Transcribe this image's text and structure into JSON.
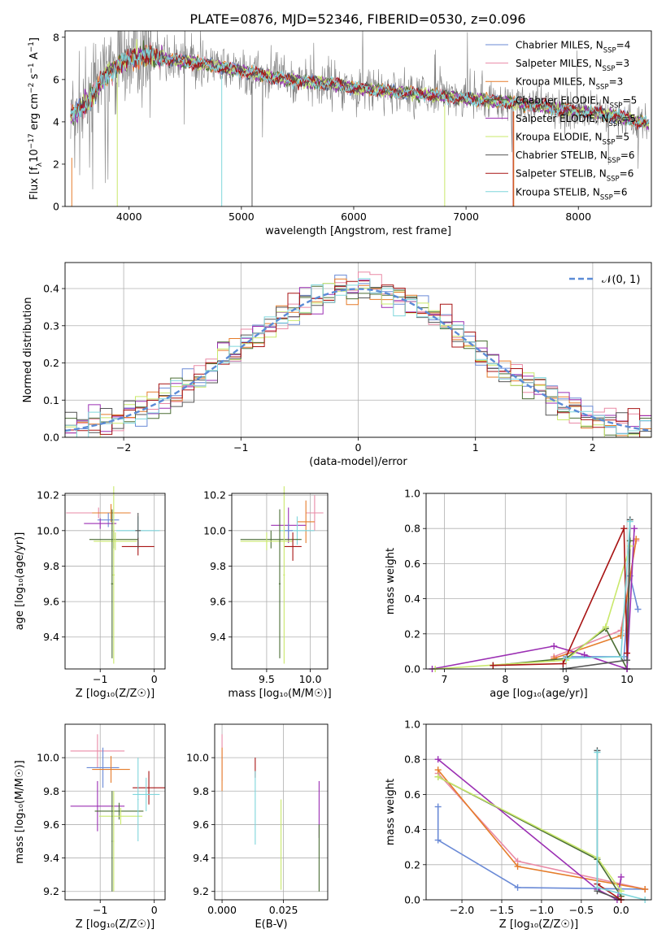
{
  "figure": {
    "title": "PLATE=0876, MJD=52346, FIBERID=0530, z=0.096"
  },
  "colors": {
    "Chabrier MILES": "#6a8ad6",
    "Salpeter MILES": "#e98aa6",
    "Kroupa MILES": "#e57c2a",
    "Chabrier ELODIE": "#4b6e35",
    "Salpeter ELODIE": "#9b2fb3",
    "Kroupa ELODIE": "#c9e86b",
    "Chabrier STELIB": "#555555",
    "Salpeter STELIB": "#a81414",
    "Kroupa STELIB": "#7fd6dc",
    "data": "#808080",
    "gaussian": "#5b8bd6"
  },
  "chart_data": [
    {
      "id": "spectrum",
      "type": "line",
      "xlabel": "wavelength [Angstrom, rest frame]",
      "ylabel_parts": [
        "Flux [f",
        "λ",
        "10",
        "−17",
        " erg cm",
        "−2",
        " s",
        "−1",
        " A",
        "−1",
        "]"
      ],
      "xlim": [
        3430,
        8650
      ],
      "ylim": [
        0,
        8.3
      ],
      "xticks": [
        4000,
        5000,
        6000,
        7000,
        8000
      ],
      "yticks": [
        0,
        2,
        4,
        6,
        8
      ],
      "grid": false,
      "legend_position": "top-right",
      "continuum": [
        [
          3480,
          4.3
        ],
        [
          3600,
          4.8
        ],
        [
          3700,
          5.4
        ],
        [
          3800,
          6.2
        ],
        [
          3900,
          6.7
        ],
        [
          4000,
          7.0
        ],
        [
          4100,
          7.1
        ],
        [
          4200,
          7.1
        ],
        [
          4400,
          6.9
        ],
        [
          4600,
          6.8
        ],
        [
          4800,
          6.6
        ],
        [
          5000,
          6.4
        ],
        [
          5200,
          6.2
        ],
        [
          5400,
          6.0
        ],
        [
          5600,
          5.9
        ],
        [
          5800,
          5.8
        ],
        [
          6000,
          5.6
        ],
        [
          6200,
          5.5
        ],
        [
          6400,
          5.4
        ],
        [
          6600,
          5.3
        ],
        [
          6800,
          5.2
        ],
        [
          7000,
          5.1
        ],
        [
          7200,
          5.0
        ],
        [
          7400,
          4.9
        ],
        [
          7600,
          4.8
        ],
        [
          7800,
          4.6
        ],
        [
          8000,
          4.5
        ],
        [
          8200,
          4.4
        ],
        [
          8400,
          4.2
        ],
        [
          8630,
          3.9
        ]
      ],
      "series": [
        {
          "name_parts": [
            "Chabrier MILES, N",
            "SSP",
            "=4"
          ],
          "key": "Chabrier MILES"
        },
        {
          "name_parts": [
            "Salpeter MILES, N",
            "SSP",
            "=3"
          ],
          "key": "Salpeter MILES"
        },
        {
          "name_parts": [
            "Kroupa MILES, N",
            "SSP",
            "=3"
          ],
          "key": "Kroupa MILES"
        },
        {
          "name_parts": [
            "Chabrier ELODIE, N",
            "SSP",
            "=5"
          ],
          "key": "Chabrier ELODIE"
        },
        {
          "name_parts": [
            "Salpeter ELODIE, N",
            "SSP",
            "=5"
          ],
          "key": "Salpeter ELODIE"
        },
        {
          "name_parts": [
            "Kroupa ELODIE, N",
            "SSP",
            "=5"
          ],
          "key": "Kroupa ELODIE"
        },
        {
          "name_parts": [
            "Chabrier STELIB, N",
            "SSP",
            "=6"
          ],
          "key": "Chabrier STELIB"
        },
        {
          "name_parts": [
            "Salpeter STELIB, N",
            "SSP",
            "=6"
          ],
          "key": "Salpeter STELIB"
        },
        {
          "name_parts": [
            "Kroupa STELIB, N",
            "SSP",
            "=6"
          ],
          "key": "Kroupa STELIB"
        }
      ],
      "dropouts": [
        {
          "key": "Kroupa ELODIE",
          "x": 3895
        },
        {
          "key": "Kroupa STELIB",
          "x": 4825
        },
        {
          "key": "Chabrier STELIB",
          "x": 5095
        },
        {
          "key": "Kroupa ELODIE",
          "x": 6810
        },
        {
          "key": "Salpeter STELIB",
          "x": 7420
        },
        {
          "key": "Kroupa MILES",
          "x": 7425
        }
      ]
    },
    {
      "id": "residuals",
      "type": "histogram",
      "xlabel": "(data-model)/error",
      "ylabel": "Normed distribution",
      "xlim": [
        -2.5,
        2.5
      ],
      "ylim": [
        0,
        0.47
      ],
      "xticks": [
        -2,
        -1,
        0,
        1,
        2
      ],
      "xticklabels": [
        "−2",
        "−1",
        "0",
        "1",
        "2"
      ],
      "yticks": [
        0.0,
        0.1,
        0.2,
        0.3,
        0.4
      ],
      "yticklabels": [
        "0.0",
        "0.1",
        "0.2",
        "0.3",
        "0.4"
      ],
      "grid": true,
      "legend_position": "top-right",
      "legend_label": "𝒩(0, 1)",
      "bin_width": 0.1,
      "series_keys": [
        "Chabrier MILES",
        "Salpeter MILES",
        "Kroupa MILES",
        "Chabrier ELODIE",
        "Salpeter ELODIE",
        "Kroupa ELODIE",
        "Chabrier STELIB",
        "Salpeter STELIB",
        "Kroupa STELIB"
      ]
    },
    {
      "id": "age-vs-Z",
      "type": "scatter",
      "xlabel": "Z [log₁₀(Z/Z☉)]",
      "ylabel": "age  [log₁₀(age/yr)]",
      "xlim": [
        -1.65,
        0.2
      ],
      "ylim": [
        9.22,
        10.21
      ],
      "xticks": [
        -1,
        0
      ],
      "xticklabels": [
        "−1",
        "0"
      ],
      "yticks": [
        9.4,
        9.6,
        9.8,
        10.0,
        10.2
      ],
      "yticklabels": [
        "9.4",
        "9.6",
        "9.8",
        "10.0",
        "10.2"
      ],
      "grid": true,
      "points": [
        {
          "key": "Salpeter MILES",
          "x": -1.03,
          "xerr": 0.6,
          "y": 10.1,
          "yerr": 0.03
        },
        {
          "key": "Kroupa MILES",
          "x": -0.8,
          "xerr": 0.35,
          "y": 10.1,
          "yerr": 0.05
        },
        {
          "key": "Chabrier MILES",
          "x": -0.85,
          "xerr": 0.2,
          "y": 10.06,
          "yerr": 0.04
        },
        {
          "key": "Salpeter ELODIE",
          "x": -1.0,
          "xerr": 0.3,
          "y": 10.04,
          "yerr": 0.03
        },
        {
          "key": "Kroupa STELIB",
          "x": -0.3,
          "xerr": 0.4,
          "y": 10.0,
          "yerr": 0.08
        },
        {
          "key": "Chabrier ELODIE",
          "x": -0.75,
          "xerr": 0.45,
          "y": 9.95,
          "yerr": 0.05
        },
        {
          "key": "Kroupa ELODIE",
          "x": -0.72,
          "xerr": 0.4,
          "y": 9.94,
          "yerr": 0.05
        },
        {
          "key": "Salpeter STELIB",
          "x": -0.3,
          "xerr": 0.3,
          "y": 9.91,
          "yerr": 0.05
        },
        {
          "key": "Chabrier STELIB",
          "x": -0.3,
          "xerr": 0.05,
          "y": 10.0,
          "yerr": 0.1
        },
        {
          "key": "Chabrier ELODIE",
          "x": -0.78,
          "xerr": 0.02,
          "y": 9.7,
          "yerr": 0.42
        },
        {
          "key": "Kroupa ELODIE",
          "x": -0.75,
          "xerr": 0.02,
          "y": 9.75,
          "yerr": 0.5
        }
      ]
    },
    {
      "id": "age-vs-mass",
      "type": "scatter",
      "xlabel": "mass [log₁₀(M/M☉)]",
      "ylabel": "",
      "xlim": [
        9.1,
        10.2
      ],
      "ylim": [
        9.22,
        10.21
      ],
      "xticks": [
        9.5,
        10.0
      ],
      "xticklabels": [
        "9.5",
        "10.0"
      ],
      "yticks": [
        9.4,
        9.6,
        9.8,
        10.0,
        10.2
      ],
      "yticklabels": [
        "9.4",
        "9.6",
        "9.8",
        "10.0",
        "10.2"
      ],
      "grid": true,
      "points": [
        {
          "key": "Salpeter MILES",
          "x": 10.05,
          "xerr": 0.1,
          "y": 10.1,
          "yerr": 0.1
        },
        {
          "key": "Kroupa MILES",
          "x": 9.95,
          "xerr": 0.1,
          "y": 10.05,
          "yerr": 0.12
        },
        {
          "key": "Salpeter ELODIE",
          "x": 9.75,
          "xerr": 0.2,
          "y": 10.03,
          "yerr": 0.1
        },
        {
          "key": "Kroupa STELIB",
          "x": 9.85,
          "xerr": 0.2,
          "y": 10.0,
          "yerr": 0.08
        },
        {
          "key": "Chabrier MILES",
          "x": 9.75,
          "xerr": 0.05,
          "y": 10.0,
          "yerr": 0.04
        },
        {
          "key": "Chabrier ELODIE",
          "x": 9.55,
          "xerr": 0.35,
          "y": 9.95,
          "yerr": 0.05
        },
        {
          "key": "Kroupa ELODIE",
          "x": 9.5,
          "xerr": 0.3,
          "y": 9.94,
          "yerr": 0.05
        },
        {
          "key": "Salpeter STELIB",
          "x": 9.8,
          "xerr": 0.1,
          "y": 9.91,
          "yerr": 0.08
        },
        {
          "key": "Chabrier ELODIE",
          "x": 9.65,
          "xerr": 0.01,
          "y": 9.7,
          "yerr": 0.42
        },
        {
          "key": "Kroupa ELODIE",
          "x": 9.7,
          "xerr": 0.01,
          "y": 9.75,
          "yerr": 0.5
        }
      ]
    },
    {
      "id": "mass-weight-vs-age",
      "type": "line",
      "xlabel": "age  [log₁₀(age/yr)]",
      "ylabel": "mass weight",
      "xlim": [
        6.7,
        10.4
      ],
      "ylim": [
        0,
        1.0
      ],
      "xticks": [
        7,
        8,
        9,
        10
      ],
      "yticks": [
        0.0,
        0.2,
        0.4,
        0.6,
        0.8,
        1.0
      ],
      "yticklabels": [
        "0.0",
        "0.2",
        "0.4",
        "0.6",
        "0.8",
        "1.0"
      ],
      "grid": true,
      "series": [
        {
          "key": "Chabrier MILES",
          "x": [
            9.0,
            9.95,
            10.05,
            10.18
          ],
          "y": [
            0.07,
            0.07,
            0.53,
            0.34
          ]
        },
        {
          "key": "Salpeter MILES",
          "x": [
            8.8,
            9.9,
            10.15
          ],
          "y": [
            0.07,
            0.22,
            0.73
          ]
        },
        {
          "key": "Kroupa MILES",
          "x": [
            8.8,
            9.9,
            10.15
          ],
          "y": [
            0.06,
            0.19,
            0.74
          ]
        },
        {
          "key": "Chabrier ELODIE",
          "x": [
            7.8,
            9.0,
            9.65,
            10.0,
            10.05
          ],
          "y": [
            0.02,
            0.06,
            0.23,
            0.0,
            0.73
          ]
        },
        {
          "key": "Salpeter ELODIE",
          "x": [
            6.8,
            8.8,
            9.3,
            10.0,
            10.12
          ],
          "y": [
            0.0,
            0.13,
            0.08,
            0.0,
            0.8
          ]
        },
        {
          "key": "Kroupa ELODIE",
          "x": [
            6.85,
            9.0,
            9.65,
            10.05
          ],
          "y": [
            0.0,
            0.05,
            0.24,
            0.7
          ]
        },
        {
          "key": "Chabrier STELIB",
          "x": [
            8.95,
            10.0,
            10.05
          ],
          "y": [
            0.0,
            0.05,
            0.85
          ]
        },
        {
          "key": "Salpeter STELIB",
          "x": [
            7.8,
            8.95,
            9.95,
            10.0
          ],
          "y": [
            0.02,
            0.03,
            0.8,
            0.09
          ]
        },
        {
          "key": "Kroupa STELIB",
          "x": [
            9.0,
            9.9,
            10.05
          ],
          "y": [
            0.06,
            0.07,
            0.84
          ]
        }
      ]
    },
    {
      "id": "mass-vs-Z",
      "type": "scatter",
      "xlabel": "Z [log₁₀(Z/Z☉)]",
      "ylabel": "mass [log₁₀(M/M☉)]",
      "xlim": [
        -1.65,
        0.2
      ],
      "ylim": [
        9.15,
        10.2
      ],
      "xticks": [
        -1,
        0
      ],
      "xticklabels": [
        "−1",
        "0"
      ],
      "yticks": [
        9.2,
        9.4,
        9.6,
        9.8,
        10.0
      ],
      "yticklabels": [
        "9.2",
        "9.4",
        "9.6",
        "9.8",
        "10.0"
      ],
      "grid": true,
      "points": [
        {
          "key": "Salpeter MILES",
          "x": -1.05,
          "xerr": 0.5,
          "y": 10.04,
          "yerr": 0.1
        },
        {
          "key": "Chabrier MILES",
          "x": -0.95,
          "xerr": 0.3,
          "y": 9.94,
          "yerr": 0.12
        },
        {
          "key": "Kroupa MILES",
          "x": -0.8,
          "xerr": 0.35,
          "y": 9.93,
          "yerr": 0.08
        },
        {
          "key": "Salpeter STELIB",
          "x": -0.1,
          "xerr": 0.3,
          "y": 9.82,
          "yerr": 0.1
        },
        {
          "key": "Kroupa STELIB",
          "x": -0.15,
          "xerr": 0.25,
          "y": 9.78,
          "yerr": 0.1
        },
        {
          "key": "Salpeter ELODIE",
          "x": -1.05,
          "xerr": 0.5,
          "y": 9.71,
          "yerr": 0.15
        },
        {
          "key": "Chabrier ELODIE",
          "x": -0.65,
          "xerr": 0.45,
          "y": 9.68,
          "yerr": 0.05
        },
        {
          "key": "Kroupa ELODIE",
          "x": -0.62,
          "xerr": 0.4,
          "y": 9.65,
          "yerr": 0.05
        },
        {
          "key": "Kroupa STELIB",
          "x": -0.3,
          "xerr": 0.01,
          "y": 9.75,
          "yerr": 0.25
        },
        {
          "key": "Chabrier ELODIE",
          "x": -0.78,
          "xerr": 0.01,
          "y": 9.5,
          "yerr": 0.3
        },
        {
          "key": "Kroupa ELODIE",
          "x": -0.75,
          "xerr": 0.01,
          "y": 9.5,
          "yerr": 0.3
        }
      ]
    },
    {
      "id": "mass-vs-ebv",
      "type": "scatter",
      "xlabel": "E(B-V)",
      "ylabel": "",
      "xlim": [
        -0.003,
        0.043
      ],
      "ylim": [
        9.15,
        10.2
      ],
      "xticks": [
        0.0,
        0.025
      ],
      "xticklabels": [
        "0.000",
        "0.025"
      ],
      "yticks": [
        9.2,
        9.4,
        9.6,
        9.8,
        10.0
      ],
      "yticklabels": [
        "9.2",
        "9.4",
        "9.6",
        "9.8",
        "10.0"
      ],
      "grid": true,
      "points": [
        {
          "key": "Salpeter MILES",
          "x": 0.0,
          "xerr": 0.0,
          "y": 10.0,
          "yerr": 0.14
        },
        {
          "key": "Kroupa MILES",
          "x": 0.0,
          "xerr": 0.0,
          "y": 9.93,
          "yerr": 0.13
        },
        {
          "key": "Salpeter STELIB",
          "x": 0.0135,
          "xerr": 0.0,
          "y": 9.94,
          "yerr": 0.06
        },
        {
          "key": "Kroupa STELIB",
          "x": 0.0135,
          "xerr": 0.0,
          "y": 9.7,
          "yerr": 0.22
        },
        {
          "key": "Kroupa ELODIE",
          "x": 0.024,
          "xerr": 0.0,
          "y": 9.48,
          "yerr": 0.27
        },
        {
          "key": "Salpeter ELODIE",
          "x": 0.0395,
          "xerr": 0.0,
          "y": 9.69,
          "yerr": 0.17
        },
        {
          "key": "Chabrier ELODIE",
          "x": 0.0395,
          "xerr": 0.0,
          "y": 9.4,
          "yerr": 0.2
        }
      ]
    },
    {
      "id": "mass-weight-vs-Z",
      "type": "line",
      "xlabel": "Z [log₁₀(Z/Z☉)]",
      "ylabel": "mass weight",
      "xlim": [
        -2.45,
        0.38
      ],
      "ylim": [
        0,
        1.0
      ],
      "xticks": [
        -2.0,
        -1.5,
        -1.0,
        -0.5,
        0.0
      ],
      "xticklabels": [
        "−2.0",
        "−1.5",
        "−1.0",
        "−0.5",
        "0.0"
      ],
      "yticks": [
        0.0,
        0.2,
        0.4,
        0.6,
        0.8,
        1.0
      ],
      "yticklabels": [
        "0.0",
        "0.2",
        "0.4",
        "0.6",
        "0.8",
        "1.0"
      ],
      "grid": true,
      "series": [
        {
          "key": "Chabrier MILES",
          "x": [
            -2.3,
            -2.3,
            -1.3,
            0.3
          ],
          "y": [
            0.53,
            0.34,
            0.07,
            0.06
          ]
        },
        {
          "key": "Salpeter MILES",
          "x": [
            -2.3,
            -1.3,
            0.3
          ],
          "y": [
            0.72,
            0.22,
            0.06
          ]
        },
        {
          "key": "Kroupa MILES",
          "x": [
            -2.3,
            -1.3,
            0.3
          ],
          "y": [
            0.74,
            0.19,
            0.06
          ]
        },
        {
          "key": "Chabrier ELODIE",
          "x": [
            -2.3,
            -0.3,
            0.0
          ],
          "y": [
            0.7,
            0.23,
            0.02
          ]
        },
        {
          "key": "Salpeter ELODIE",
          "x": [
            -2.3,
            -0.3,
            -0.05,
            0.0
          ],
          "y": [
            0.8,
            0.06,
            0.0,
            0.13
          ]
        },
        {
          "key": "Kroupa ELODIE",
          "x": [
            -2.3,
            -0.3,
            0.0
          ],
          "y": [
            0.7,
            0.24,
            0.05
          ]
        },
        {
          "key": "Chabrier STELIB",
          "x": [
            -0.3,
            -0.3,
            0.0
          ],
          "y": [
            0.85,
            0.05,
            0.0
          ]
        },
        {
          "key": "Salpeter STELIB",
          "x": [
            -0.3,
            0.0
          ],
          "y": [
            0.09,
            0.0
          ]
        },
        {
          "key": "Kroupa STELIB",
          "x": [
            -0.3,
            -0.3,
            0.3
          ],
          "y": [
            0.84,
            0.07,
            0.0
          ]
        }
      ]
    }
  ]
}
